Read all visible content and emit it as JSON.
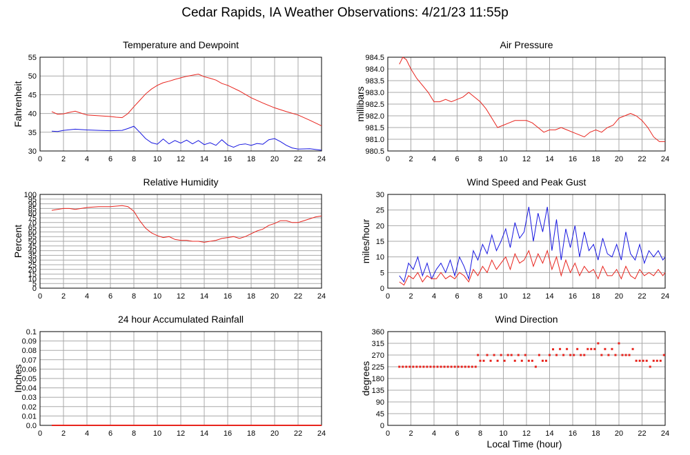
{
  "page": {
    "title": "Cedar Rapids, IA Weather Observations: 4/21/23 11:55p",
    "x_axis_title": "Local Time (hour)"
  },
  "chart_data": [
    {
      "id": "temperature-dewpoint",
      "type": "line",
      "title": "Temperature and Dewpoint",
      "xlabel": "",
      "ylabel": "Fahrenheit",
      "xlim": [
        0,
        24
      ],
      "ylim": [
        30,
        55
      ],
      "xticks": [
        2,
        4,
        6,
        8,
        10,
        12,
        14,
        16,
        18,
        20,
        22,
        24
      ],
      "yticks": [
        30,
        35,
        40,
        45,
        50,
        55
      ],
      "ytick_labels": [
        "30",
        "35",
        "40",
        "45",
        "50",
        "55"
      ],
      "grid": true,
      "series": [
        {
          "color": "#e8231c",
          "x": [
            1,
            1.5,
            2,
            2.5,
            3,
            3.5,
            4,
            5,
            6,
            6.5,
            7,
            7.5,
            8,
            8.5,
            9,
            9.5,
            10,
            10.5,
            11,
            11.5,
            12,
            12.5,
            13,
            13.5,
            14,
            14.5,
            15,
            15.5,
            16,
            17,
            18,
            19,
            20,
            21,
            22,
            23,
            24
          ],
          "y": [
            40.5,
            39.8,
            39.9,
            40.3,
            40.6,
            40.1,
            39.6,
            39.4,
            39.2,
            39.0,
            38.9,
            40.0,
            41.8,
            43.5,
            45.2,
            46.5,
            47.5,
            48.2,
            48.6,
            49.1,
            49.5,
            49.9,
            50.2,
            50.5,
            49.8,
            49.4,
            48.9,
            48.0,
            47.5,
            46.0,
            44.2,
            42.8,
            41.5,
            40.5,
            39.6,
            38.2,
            36.7
          ]
        },
        {
          "color": "#1515e0",
          "x": [
            1,
            1.5,
            2,
            3,
            4,
            5,
            6,
            7,
            7.5,
            8,
            8.5,
            9,
            9.5,
            10,
            10.5,
            11,
            11.5,
            12,
            12.5,
            13,
            13.5,
            14,
            14.5,
            15,
            15.5,
            16,
            16.5,
            17,
            17.5,
            18,
            18.5,
            19,
            19.5,
            20,
            20.5,
            21,
            21.5,
            22,
            23,
            24
          ],
          "y": [
            35.3,
            35.2,
            35.5,
            35.8,
            35.6,
            35.5,
            35.4,
            35.5,
            36.0,
            36.6,
            35.0,
            33.3,
            32.2,
            31.8,
            33.2,
            31.9,
            32.8,
            32.1,
            32.9,
            31.9,
            32.8,
            31.7,
            32.2,
            31.5,
            33.0,
            31.6,
            31.0,
            31.7,
            31.9,
            31.5,
            32.0,
            31.8,
            33.0,
            33.3,
            32.5,
            31.5,
            30.8,
            30.5,
            30.6,
            30.2
          ]
        }
      ]
    },
    {
      "id": "air-pressure",
      "type": "line",
      "title": "Air Pressure",
      "xlabel": "",
      "ylabel": "millibars",
      "xlim": [
        0,
        24
      ],
      "ylim": [
        980.5,
        984.5
      ],
      "xticks": [
        2,
        4,
        6,
        8,
        10,
        12,
        14,
        16,
        18,
        20,
        22,
        24
      ],
      "yticks": [
        980.5,
        981.0,
        981.5,
        982.0,
        982.5,
        983.0,
        983.5,
        984.0,
        984.5
      ],
      "ytick_labels": [
        "980.5",
        "981.0",
        "981.5",
        "982.0",
        "982.5",
        "983.0",
        "983.5",
        "984.0",
        "984.5"
      ],
      "grid": true,
      "series": [
        {
          "color": "#e8231c",
          "x": [
            1,
            1.3,
            1.6,
            2,
            2.5,
            3,
            3.5,
            4,
            4.5,
            5,
            5.5,
            6,
            6.5,
            7,
            7.5,
            8,
            8.5,
            9,
            9.5,
            10,
            10.5,
            11,
            11.5,
            12,
            12.5,
            13,
            13.5,
            14,
            14.5,
            15,
            15.5,
            16,
            16.5,
            17,
            17.5,
            18,
            18.5,
            19,
            19.5,
            20,
            20.5,
            21,
            21.5,
            22,
            22.5,
            23,
            23.5,
            24
          ],
          "y": [
            984.2,
            984.5,
            984.4,
            984.0,
            983.6,
            983.3,
            983.0,
            982.6,
            982.6,
            982.7,
            982.6,
            982.7,
            982.8,
            983.0,
            982.8,
            982.6,
            982.3,
            981.9,
            981.5,
            981.6,
            981.7,
            981.8,
            981.8,
            981.8,
            981.7,
            981.5,
            981.3,
            981.4,
            981.4,
            981.5,
            981.4,
            981.3,
            981.2,
            981.1,
            981.3,
            981.4,
            981.3,
            981.5,
            981.6,
            981.9,
            982.0,
            982.1,
            982.0,
            981.8,
            981.5,
            981.1,
            980.9,
            980.9
          ]
        }
      ]
    },
    {
      "id": "relative-humidity",
      "type": "line",
      "title": "Relative Humidity",
      "xlabel": "",
      "ylabel": "Percent",
      "xlim": [
        0,
        24
      ],
      "ylim": [
        0,
        100
      ],
      "xticks": [
        2,
        4,
        6,
        8,
        10,
        12,
        14,
        16,
        18,
        20,
        22,
        24
      ],
      "yticks": [
        0,
        5,
        10,
        15,
        20,
        25,
        30,
        35,
        40,
        45,
        50,
        55,
        60,
        65,
        70,
        75,
        80,
        85,
        90,
        95,
        100
      ],
      "ytick_labels": [
        "0",
        "5",
        "10",
        "15",
        "20",
        "25",
        "30",
        "35",
        "40",
        "45",
        "50",
        "55",
        "60",
        "65",
        "70",
        "75",
        "80",
        "85",
        "90",
        "95",
        "100"
      ],
      "grid": true,
      "series": [
        {
          "color": "#e8231c",
          "x": [
            1,
            1.5,
            2,
            2.5,
            3,
            4,
            5,
            6,
            7,
            7.5,
            8,
            8.5,
            9,
            9.5,
            10,
            10.5,
            11,
            11.5,
            12,
            12.5,
            13,
            13.5,
            14,
            14.5,
            15,
            15.5,
            16,
            16.5,
            17,
            17.5,
            18,
            18.5,
            19,
            19.5,
            20,
            20.5,
            21,
            21.5,
            22,
            22.5,
            23,
            23.5,
            24
          ],
          "y": [
            83,
            84,
            85,
            85,
            84,
            86,
            87,
            87,
            88,
            87,
            82,
            72,
            64,
            59,
            56,
            54,
            55,
            52,
            51,
            51,
            50,
            50,
            49,
            50,
            51,
            53,
            54,
            55,
            53,
            55,
            58,
            61,
            63,
            67,
            69,
            72,
            72,
            70,
            70,
            72,
            74,
            76,
            77
          ]
        }
      ]
    },
    {
      "id": "wind-speed-gust",
      "type": "line",
      "title": "Wind Speed and Peak Gust",
      "xlabel": "",
      "ylabel": "miles/hour",
      "xlim": [
        0,
        24
      ],
      "ylim": [
        0,
        30
      ],
      "xticks": [
        2,
        4,
        6,
        8,
        10,
        12,
        14,
        16,
        18,
        20,
        22,
        24
      ],
      "yticks": [
        0,
        5,
        10,
        15,
        20,
        25,
        30
      ],
      "ytick_labels": [
        "0",
        "5",
        "10",
        "15",
        "20",
        "25",
        "30"
      ],
      "grid": true,
      "series": [
        {
          "color": "#1515e0",
          "x": [
            1,
            1.4,
            1.8,
            2.2,
            2.6,
            3,
            3.4,
            3.8,
            4.2,
            4.6,
            5,
            5.4,
            5.8,
            6.2,
            6.6,
            7,
            7.4,
            7.8,
            8.2,
            8.6,
            9,
            9.4,
            9.8,
            10.2,
            10.6,
            11,
            11.4,
            11.8,
            12.2,
            12.6,
            13,
            13.4,
            13.8,
            14.2,
            14.6,
            15,
            15.4,
            15.8,
            16.2,
            16.6,
            17,
            17.4,
            17.8,
            18.2,
            18.6,
            19,
            19.4,
            19.8,
            20.2,
            20.6,
            21,
            21.4,
            21.8,
            22.2,
            22.6,
            23,
            23.4,
            23.8,
            24
          ],
          "y": [
            4,
            2,
            8,
            6,
            10,
            4,
            8,
            3,
            6,
            8,
            5,
            9,
            4,
            10,
            7,
            3,
            12,
            9,
            14,
            11,
            17,
            12,
            15,
            19,
            13,
            21,
            16,
            18,
            26,
            15,
            24,
            18,
            26,
            12,
            22,
            9,
            19,
            13,
            20,
            10,
            18,
            12,
            14,
            9,
            16,
            11,
            10,
            14,
            9,
            18,
            11,
            9,
            14,
            8,
            12,
            10,
            12,
            9,
            10
          ]
        },
        {
          "color": "#e8231c",
          "x": [
            1,
            1.4,
            1.8,
            2.2,
            2.6,
            3,
            3.4,
            3.8,
            4.2,
            4.6,
            5,
            5.4,
            5.8,
            6.2,
            6.6,
            7,
            7.4,
            7.8,
            8.2,
            8.6,
            9,
            9.4,
            9.8,
            10.2,
            10.6,
            11,
            11.4,
            11.8,
            12.2,
            12.6,
            13,
            13.4,
            13.8,
            14.2,
            14.6,
            15,
            15.4,
            15.8,
            16.2,
            16.6,
            17,
            17.4,
            17.8,
            18.2,
            18.6,
            19,
            19.4,
            19.8,
            20.2,
            20.6,
            21,
            21.4,
            21.8,
            22.2,
            22.6,
            23,
            23.4,
            23.8,
            24
          ],
          "y": [
            2,
            1,
            4,
            3,
            5,
            2,
            4,
            3,
            3,
            5,
            3,
            4,
            3,
            5,
            4,
            2,
            6,
            4,
            7,
            5,
            9,
            6,
            8,
            10,
            6,
            11,
            8,
            9,
            12,
            7,
            11,
            8,
            12,
            6,
            10,
            4,
            9,
            5,
            8,
            4,
            7,
            5,
            6,
            3,
            7,
            4,
            4,
            6,
            3,
            7,
            4,
            3,
            6,
            4,
            5,
            4,
            6,
            4,
            5
          ]
        }
      ]
    },
    {
      "id": "accumulated-rainfall",
      "type": "line",
      "title": "24 hour Accumulated Rainfall",
      "xlabel": "",
      "ylabel": "Inches",
      "xlim": [
        0,
        24
      ],
      "ylim": [
        0,
        0.1
      ],
      "xticks": [
        2,
        4,
        6,
        8,
        10,
        12,
        14,
        16,
        18,
        20,
        22,
        24
      ],
      "yticks": [
        0,
        0.01,
        0.02,
        0.03,
        0.04,
        0.05,
        0.06,
        0.07,
        0.08,
        0.09,
        0.1
      ],
      "ytick_labels": [
        "0.0",
        "0.01",
        "0.02",
        "0.03",
        "0.04",
        "0.05",
        "0.06",
        "0.07",
        "0.08",
        "0.09",
        "0.1"
      ],
      "grid": true,
      "series": [
        {
          "color": "#e8231c",
          "x": [
            1,
            24
          ],
          "y": [
            0,
            0
          ]
        }
      ]
    },
    {
      "id": "wind-direction",
      "type": "scatter",
      "title": "Wind Direction",
      "xlabel": "",
      "ylabel": "degrees",
      "xlim": [
        0,
        24
      ],
      "ylim": [
        0,
        360
      ],
      "xticks": [
        2,
        4,
        6,
        8,
        10,
        12,
        14,
        16,
        18,
        20,
        22,
        24
      ],
      "yticks": [
        0,
        45,
        90,
        135,
        180,
        225,
        270,
        315,
        360
      ],
      "ytick_labels": [
        "0",
        "45",
        "90",
        "135",
        "180",
        "225",
        "270",
        "315",
        "360"
      ],
      "grid": true,
      "series": [
        {
          "color": "#e8231c",
          "x": [
            1,
            1.3,
            1.6,
            1.9,
            2.2,
            2.5,
            2.8,
            3.1,
            3.4,
            3.7,
            4,
            4.3,
            4.6,
            4.9,
            5.2,
            5.5,
            5.8,
            6.1,
            6.4,
            6.7,
            7,
            7.3,
            7.6,
            7.8,
            8.0,
            8.3,
            8.6,
            8.9,
            9.2,
            9.5,
            9.8,
            10.1,
            10.4,
            10.7,
            11.0,
            11.3,
            11.6,
            11.9,
            12.2,
            12.5,
            12.8,
            13.1,
            13.4,
            13.7,
            14.0,
            14.3,
            14.6,
            14.9,
            15.2,
            15.5,
            15.8,
            16.1,
            16.4,
            16.7,
            17.0,
            17.3,
            17.6,
            17.9,
            18.2,
            18.5,
            18.8,
            19.1,
            19.4,
            19.7,
            20.0,
            20.3,
            20.6,
            20.9,
            21.2,
            21.5,
            21.8,
            22.1,
            22.4,
            22.7,
            23.0,
            23.3,
            23.6,
            23.9
          ],
          "y": [
            225,
            225,
            225,
            225,
            225,
            225,
            225,
            225,
            225,
            225,
            225,
            225,
            225,
            225,
            225,
            225,
            225,
            225,
            225,
            225,
            225,
            225,
            225,
            270,
            248,
            248,
            270,
            248,
            270,
            248,
            270,
            248,
            270,
            270,
            248,
            270,
            248,
            270,
            248,
            248,
            225,
            270,
            248,
            248,
            270,
            292,
            270,
            293,
            270,
            293,
            270,
            270,
            293,
            270,
            270,
            293,
            293,
            293,
            315,
            270,
            293,
            270,
            293,
            270,
            315,
            270,
            270,
            270,
            293,
            248,
            248,
            248,
            248,
            225,
            248,
            248,
            248,
            270
          ]
        }
      ]
    }
  ]
}
